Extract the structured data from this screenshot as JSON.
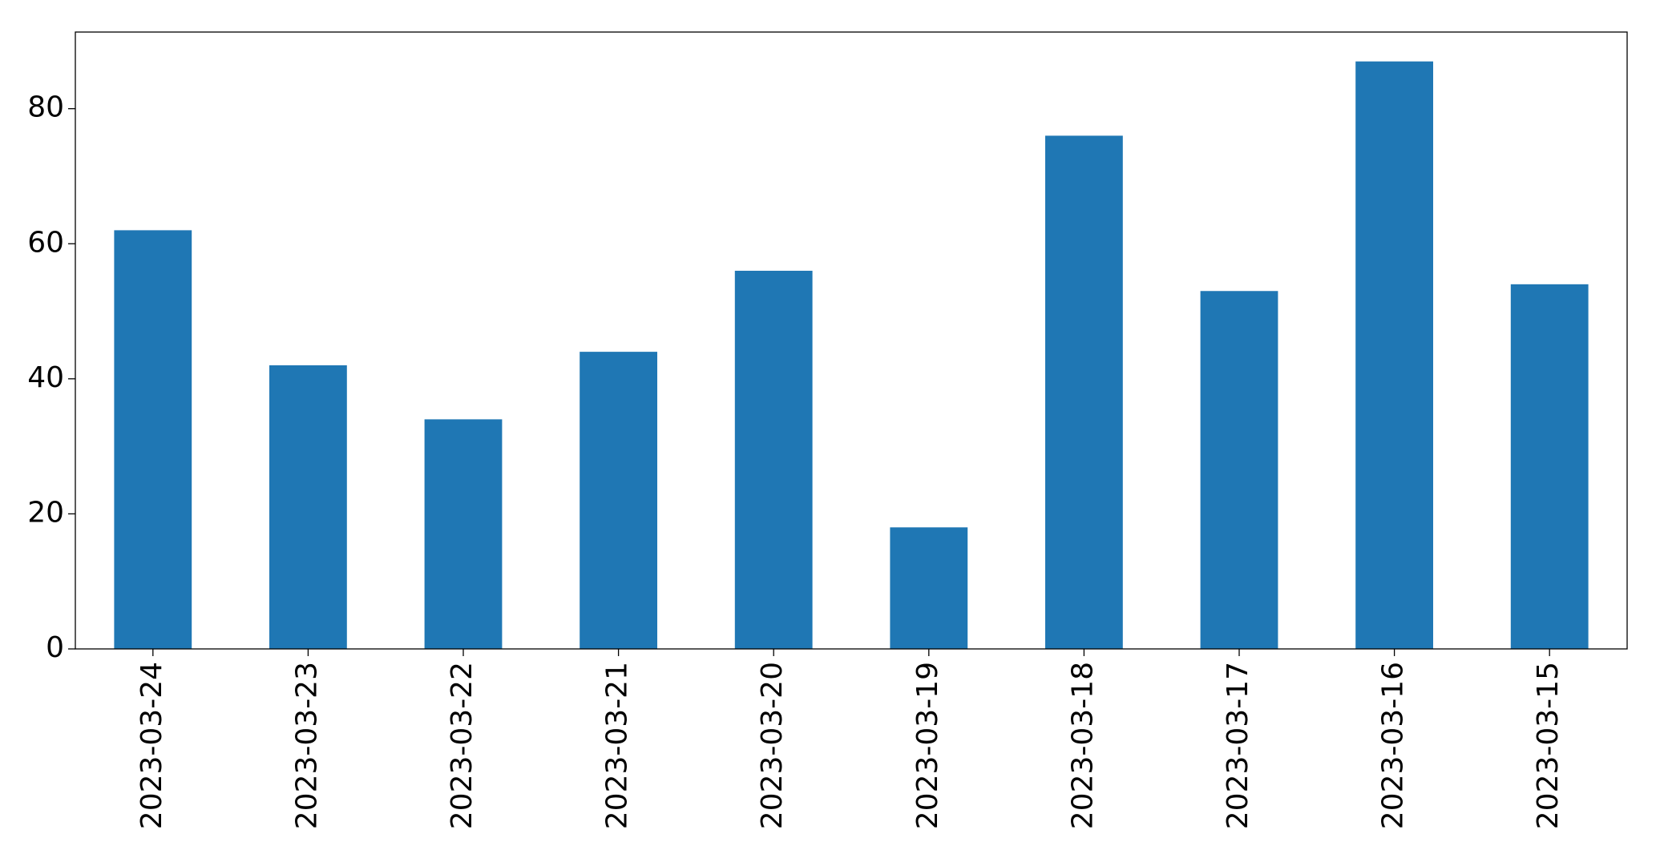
{
  "chart_data": {
    "type": "bar",
    "categories": [
      "2023-03-24",
      "2023-03-23",
      "2023-03-22",
      "2023-03-21",
      "2023-03-20",
      "2023-03-19",
      "2023-03-18",
      "2023-03-17",
      "2023-03-16",
      "2023-03-15"
    ],
    "values": [
      62,
      42,
      34,
      44,
      56,
      18,
      76,
      53,
      87,
      54
    ],
    "color": "#1f77b4",
    "ylim": [
      0,
      91.35
    ],
    "yticks": [
      0,
      20,
      40,
      60,
      80
    ],
    "grid": false
  }
}
